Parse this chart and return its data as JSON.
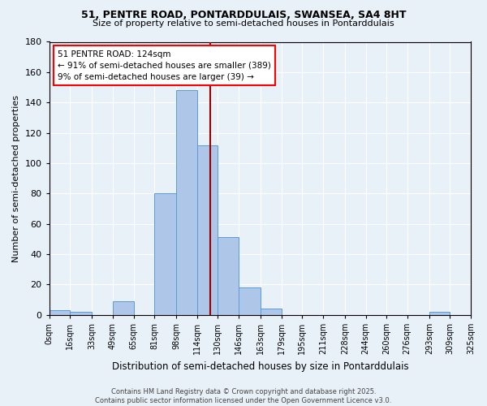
{
  "title1": "51, PENTRE ROAD, PONTARDDULAIS, SWANSEA, SA4 8HT",
  "title2": "Size of property relative to semi-detached houses in Pontarddulais",
  "xlabel": "Distribution of semi-detached houses by size in Pontarddulais",
  "ylabel": "Number of semi-detached properties",
  "footnote": "Contains HM Land Registry data © Crown copyright and database right 2025.\nContains public sector information licensed under the Open Government Licence v3.0.",
  "annotation_line1": "51 PENTRE ROAD: 124sqm",
  "annotation_line2": "← 91% of semi-detached houses are smaller (389)",
  "annotation_line3": "9% of semi-detached houses are larger (39) →",
  "property_size": 124,
  "bin_edges": [
    0,
    16,
    33,
    49,
    65,
    81,
    98,
    114,
    130,
    146,
    163,
    179,
    195,
    211,
    228,
    244,
    260,
    276,
    293,
    309,
    325
  ],
  "bin_labels": [
    "0sqm",
    "16sqm",
    "33sqm",
    "49sqm",
    "65sqm",
    "81sqm",
    "98sqm",
    "114sqm",
    "130sqm",
    "146sqm",
    "163sqm",
    "179sqm",
    "195sqm",
    "211sqm",
    "228sqm",
    "244sqm",
    "260sqm",
    "276sqm",
    "293sqm",
    "309sqm",
    "325sqm"
  ],
  "bar_heights": [
    3,
    2,
    0,
    9,
    0,
    80,
    148,
    112,
    51,
    18,
    4,
    0,
    0,
    0,
    0,
    0,
    0,
    0,
    2,
    0
  ],
  "bar_color": "#aec6e8",
  "bar_edge_color": "#5b9bd5",
  "vline_x": 124,
  "vline_color": "#9b0000",
  "background_color": "#e8f0f8",
  "ylim": [
    0,
    180
  ],
  "yticks": [
    0,
    20,
    40,
    60,
    80,
    100,
    120,
    140,
    160,
    180
  ],
  "fig_width": 6.0,
  "fig_height": 5.0,
  "dpi": 100
}
